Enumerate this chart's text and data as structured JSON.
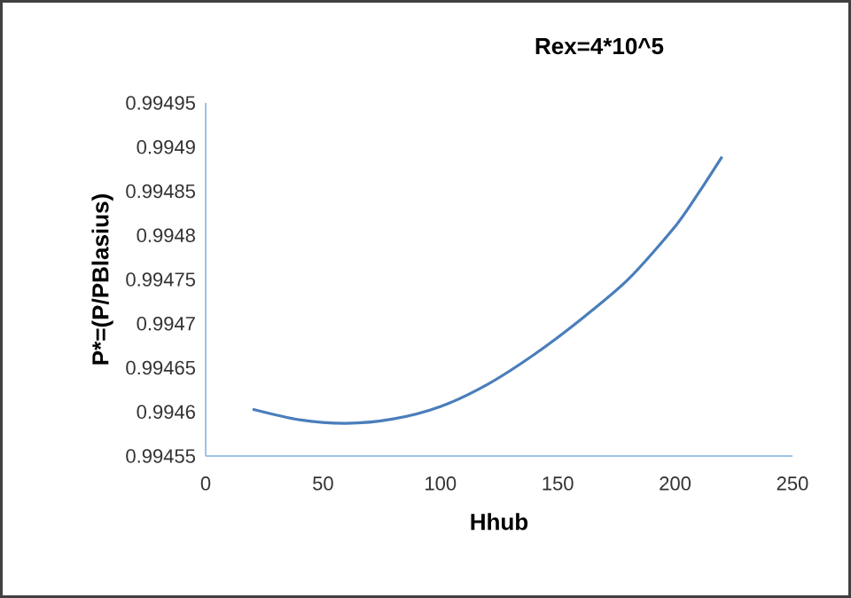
{
  "chart_data": {
    "type": "line",
    "title": "Rex=4*10^5",
    "xlabel": "Hhub",
    "ylabel": "P*=(P/PBlasius)",
    "x": [
      20,
      40,
      60,
      80,
      100,
      120,
      140,
      160,
      180,
      200,
      210,
      220
    ],
    "series": [
      {
        "color": "#4a7ebb",
        "values": [
          0.994603,
          0.994591,
          0.994587,
          0.994592,
          0.994606,
          0.994631,
          0.994665,
          0.994705,
          0.99475,
          0.99481,
          0.994848,
          0.994889
        ]
      }
    ],
    "xlim": [
      0,
      250
    ],
    "xticks": [
      0,
      50,
      100,
      150,
      200,
      250
    ],
    "ylim": [
      0.99455,
      0.99495
    ],
    "yticks": [
      0.99455,
      0.9946,
      0.99465,
      0.9947,
      0.99475,
      0.9948,
      0.99485,
      0.9949,
      0.99495
    ],
    "grid": false,
    "marker": "none",
    "line_style": "solid"
  }
}
